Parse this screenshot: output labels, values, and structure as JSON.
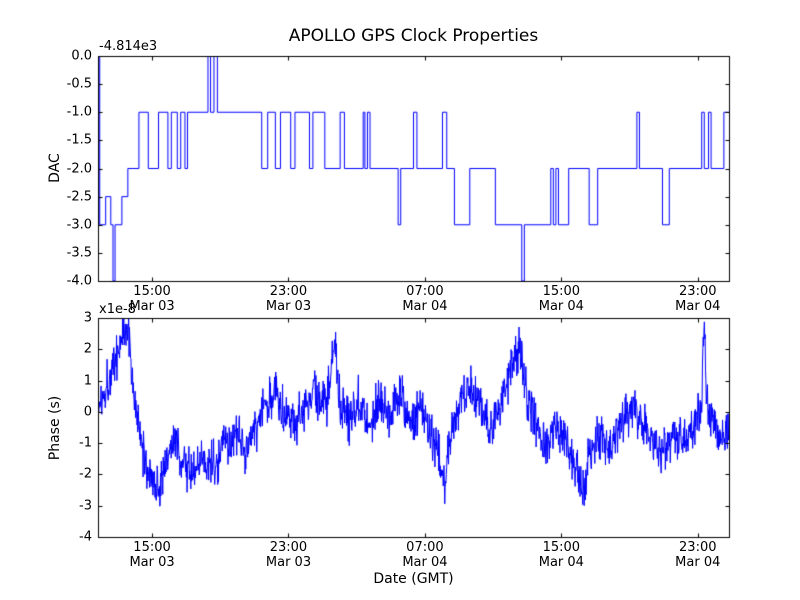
{
  "figure": {
    "title": "APOLLO GPS Clock Properties",
    "xlabel": "Date (GMT)",
    "background": "#ffffff",
    "axis_color": "#000000",
    "line_color": "#0000ff",
    "xlim_hours": [
      0,
      37
    ],
    "xticks": [
      {
        "t": 3.17,
        "time": "15:00",
        "date": "Mar 03"
      },
      {
        "t": 11.17,
        "time": "23:00",
        "date": "Mar 03"
      },
      {
        "t": 19.17,
        "time": "07:00",
        "date": "Mar 04"
      },
      {
        "t": 27.17,
        "time": "15:00",
        "date": "Mar 04"
      },
      {
        "t": 35.17,
        "time": "23:00",
        "date": "Mar 04"
      }
    ]
  },
  "chart_data": [
    {
      "type": "line",
      "style": "step-post",
      "title": "APOLLO GPS Clock Properties",
      "ylabel": "DAC",
      "y_offset_label": "-4.814e3",
      "ylim": [
        -4.0,
        0.0
      ],
      "yticks": [
        0.0,
        -0.5,
        -1.0,
        -1.5,
        -2.0,
        -2.5,
        -3.0,
        -3.5,
        -4.0
      ],
      "ytick_labels": [
        "0.0",
        "-0.5",
        "-1.0",
        "-1.5",
        "-2.0",
        "-2.5",
        "-3.0",
        "-3.5",
        "-4.0"
      ],
      "x_hours": [
        0.0,
        0.1,
        0.45,
        0.75,
        0.88,
        1.0,
        1.4,
        1.75,
        2.4,
        2.95,
        3.55,
        4.1,
        4.3,
        4.65,
        4.85,
        5.1,
        5.25,
        6.45,
        6.6,
        6.8,
        7.0,
        9.6,
        9.95,
        10.4,
        10.7,
        11.3,
        11.55,
        12.4,
        12.6,
        13.3,
        14.2,
        14.45,
        15.55,
        15.65,
        15.8,
        15.95,
        17.6,
        17.75,
        18.5,
        18.7,
        20.2,
        20.45,
        20.9,
        21.8,
        23.3,
        24.85,
        25.0,
        26.55,
        26.7,
        26.85,
        27.0,
        27.6,
        28.8,
        29.3,
        31.6,
        31.75,
        33.1,
        33.5,
        35.4,
        35.55,
        35.8,
        35.95,
        36.7
      ],
      "dac_values": [
        0,
        -3,
        -2.5,
        -3,
        -4,
        -3,
        -2.5,
        -2,
        -1,
        -2,
        -1,
        -2,
        -1,
        -2,
        -1,
        -2,
        -1,
        0,
        -1,
        0,
        -1,
        -2,
        -1,
        -2,
        -1,
        -2,
        -1,
        -2,
        -1,
        -2,
        -1,
        -2,
        -1,
        -2,
        -1,
        -2,
        -3,
        -2,
        -1,
        -2,
        -1,
        -2,
        -3,
        -2,
        -3,
        -4,
        -3,
        -2,
        -3,
        -2,
        -3,
        -2,
        -3,
        -2,
        -1,
        -2,
        -3,
        -2,
        -1,
        -2,
        -1,
        -2,
        -1
      ]
    },
    {
      "type": "line",
      "style": "noisy",
      "ylabel": "Phase (s)",
      "y_scale_label": "x1e-8",
      "xlabel": "Date (GMT)",
      "ylim": [
        -4,
        3
      ],
      "yticks": [
        3,
        2,
        1,
        0,
        -1,
        -2,
        -3,
        -4
      ],
      "ytick_labels": [
        "3",
        "2",
        "1",
        "0",
        "-1",
        "-2",
        "-3",
        "-4"
      ],
      "trend_hours": [
        0.0,
        0.5,
        1.0,
        1.5,
        1.75,
        2.0,
        2.3,
        2.7,
        3.2,
        3.6,
        4.0,
        4.5,
        5.0,
        5.6,
        6.2,
        6.8,
        7.4,
        8.0,
        8.6,
        9.2,
        9.8,
        10.4,
        11.0,
        11.6,
        12.2,
        12.8,
        13.4,
        13.9,
        14.1,
        14.7,
        15.3,
        15.9,
        16.5,
        17.1,
        17.7,
        18.3,
        18.9,
        19.5,
        20.0,
        20.3,
        20.7,
        21.3,
        21.9,
        22.5,
        23.1,
        23.7,
        24.3,
        24.7,
        25.1,
        25.7,
        26.3,
        26.9,
        27.5,
        28.1,
        28.4,
        28.9,
        29.5,
        30.1,
        30.7,
        31.3,
        31.9,
        32.5,
        33.1,
        33.7,
        34.3,
        34.9,
        35.4,
        35.55,
        35.7,
        36.2,
        36.7,
        37.0
      ],
      "trend_values_1e8": [
        0.1,
        0.9,
        1.6,
        2.6,
        2.8,
        1.2,
        -0.3,
        -1.5,
        -2.2,
        -2.5,
        -1.4,
        -1.0,
        -1.6,
        -2.0,
        -1.5,
        -1.7,
        -1.1,
        -0.8,
        -1.2,
        -0.6,
        0.2,
        0.6,
        0.1,
        -0.4,
        0.3,
        0.6,
        0.1,
        2.4,
        0.6,
        -0.3,
        0.5,
        -0.4,
        0.5,
        -0.1,
        0.7,
        -0.5,
        0.1,
        -0.6,
        -1.2,
        -2.4,
        -0.6,
        0.4,
        0.9,
        0.1,
        -0.6,
        0.4,
        1.4,
        2.2,
        0.6,
        -0.4,
        -1.1,
        -0.3,
        -0.9,
        -1.9,
        -2.5,
        -1.3,
        -0.7,
        -1.1,
        -0.4,
        0.2,
        -0.3,
        -0.9,
        -1.3,
        -0.7,
        -1.0,
        -0.4,
        0.3,
        2.9,
        0.2,
        -0.5,
        -0.7,
        -0.4
      ],
      "noise_amplitude_1e8": 0.9,
      "noise_seed": 1337,
      "samples_per_hour": 45
    }
  ]
}
